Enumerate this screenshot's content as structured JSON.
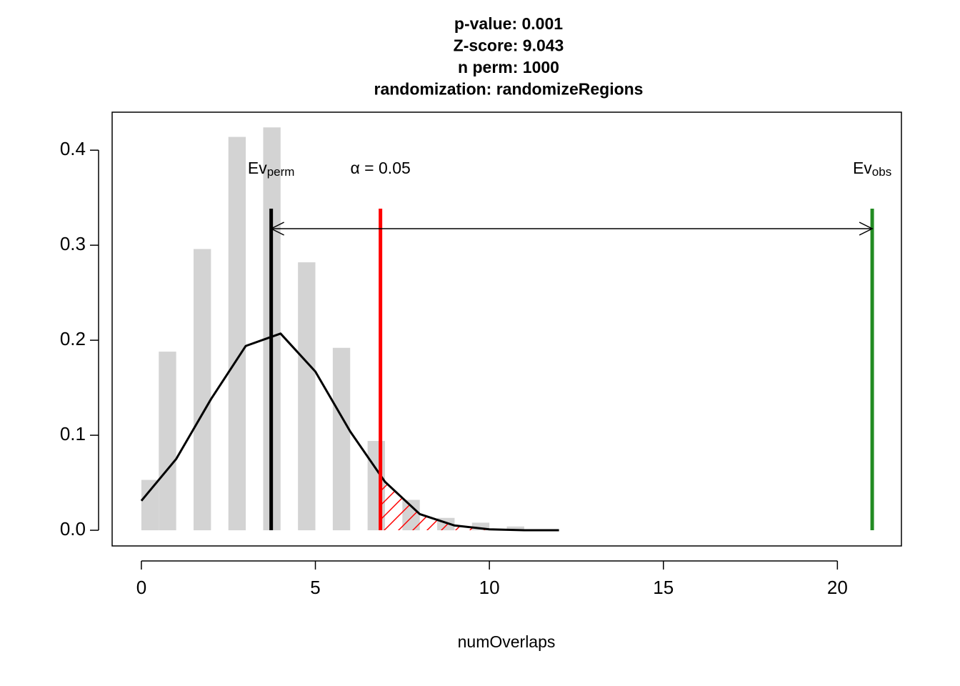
{
  "chart_data": {
    "type": "histogram",
    "title": [
      "p-value:  0.001",
      "Z-score:  9.043",
      "n perm:  1000",
      "randomization:  randomizeRegions"
    ],
    "x_label": "numOverlaps",
    "bins": [
      0,
      0.5,
      1,
      1.5,
      2,
      2.5,
      3,
      3.5,
      4,
      4.5,
      5,
      5.5,
      6,
      6.5,
      7,
      7.5,
      8,
      8.5,
      9,
      9.5,
      10,
      10.5,
      11
    ],
    "counts": [
      0.053,
      0.188,
      0,
      0.296,
      0,
      0.414,
      0,
      0.424,
      0,
      0.282,
      0,
      0.192,
      0,
      0.094,
      0,
      0.032,
      0,
      0.013,
      0,
      0.008,
      0,
      0.004
    ],
    "color": "#d3d3d3",
    "density": {
      "x": [
        0,
        1,
        2,
        3,
        4,
        5,
        6,
        7,
        8,
        9,
        10,
        11,
        12
      ],
      "values": [
        0.031,
        0.075,
        0.138,
        0.194,
        0.207,
        0.167,
        0.104,
        0.051,
        0.017,
        0.005,
        0.001,
        0,
        0
      ],
      "color": "#000000"
    },
    "markers": [
      {
        "label": "Ev",
        "subscript": "perm",
        "x": 3.73,
        "color": "#000000"
      },
      {
        "label": "α = 0.05",
        "x": 6.87,
        "color": "#ff0000",
        "hatch": true
      },
      {
        "label": "Ev",
        "subscript": "obs",
        "x": 21.0,
        "color": "#228b22"
      }
    ],
    "xlim": [
      -0.84,
      21.84
    ],
    "ylim": [
      -0.0165,
      0.44
    ],
    "xticks": [
      0,
      5,
      10,
      15,
      20
    ],
    "yticks": [
      {
        "value": 0,
        "label": "0.0"
      },
      0.1,
      0.2,
      0.3,
      0.4
    ]
  }
}
